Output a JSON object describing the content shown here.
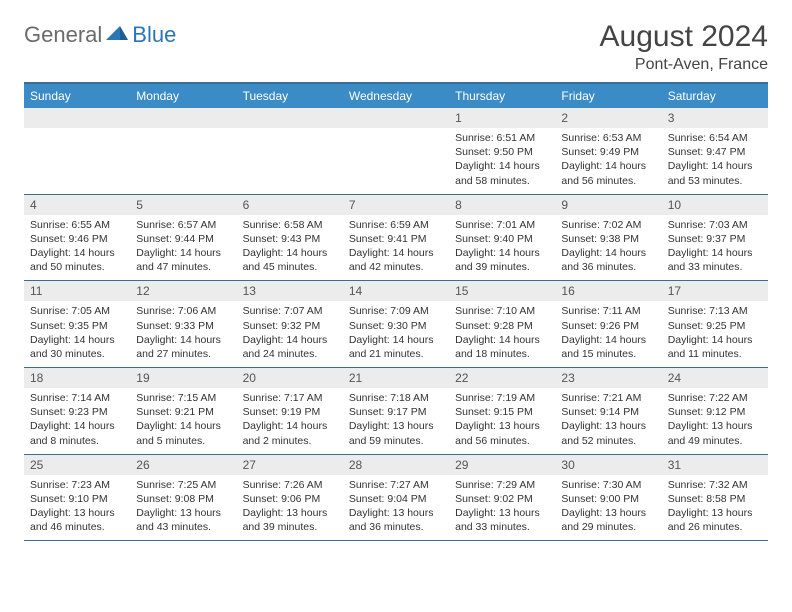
{
  "brand": {
    "general": "General",
    "blue": "Blue"
  },
  "header": {
    "month_title": "August 2024",
    "location": "Pont-Aven, France"
  },
  "colors": {
    "header_bg": "#3b8bc6",
    "rule": "#3b6c92",
    "daynum_bg": "#ececec",
    "text": "#333333",
    "brand_blue": "#2b76b9",
    "brand_gray": "#6b6b6b"
  },
  "weekday_labels": [
    "Sunday",
    "Monday",
    "Tuesday",
    "Wednesday",
    "Thursday",
    "Friday",
    "Saturday"
  ],
  "first_weekday_index": 4,
  "days": [
    {
      "n": 1,
      "sr": "6:51 AM",
      "ss": "9:50 PM",
      "dl": "14 hours and 58 minutes."
    },
    {
      "n": 2,
      "sr": "6:53 AM",
      "ss": "9:49 PM",
      "dl": "14 hours and 56 minutes."
    },
    {
      "n": 3,
      "sr": "6:54 AM",
      "ss": "9:47 PM",
      "dl": "14 hours and 53 minutes."
    },
    {
      "n": 4,
      "sr": "6:55 AM",
      "ss": "9:46 PM",
      "dl": "14 hours and 50 minutes."
    },
    {
      "n": 5,
      "sr": "6:57 AM",
      "ss": "9:44 PM",
      "dl": "14 hours and 47 minutes."
    },
    {
      "n": 6,
      "sr": "6:58 AM",
      "ss": "9:43 PM",
      "dl": "14 hours and 45 minutes."
    },
    {
      "n": 7,
      "sr": "6:59 AM",
      "ss": "9:41 PM",
      "dl": "14 hours and 42 minutes."
    },
    {
      "n": 8,
      "sr": "7:01 AM",
      "ss": "9:40 PM",
      "dl": "14 hours and 39 minutes."
    },
    {
      "n": 9,
      "sr": "7:02 AM",
      "ss": "9:38 PM",
      "dl": "14 hours and 36 minutes."
    },
    {
      "n": 10,
      "sr": "7:03 AM",
      "ss": "9:37 PM",
      "dl": "14 hours and 33 minutes."
    },
    {
      "n": 11,
      "sr": "7:05 AM",
      "ss": "9:35 PM",
      "dl": "14 hours and 30 minutes."
    },
    {
      "n": 12,
      "sr": "7:06 AM",
      "ss": "9:33 PM",
      "dl": "14 hours and 27 minutes."
    },
    {
      "n": 13,
      "sr": "7:07 AM",
      "ss": "9:32 PM",
      "dl": "14 hours and 24 minutes."
    },
    {
      "n": 14,
      "sr": "7:09 AM",
      "ss": "9:30 PM",
      "dl": "14 hours and 21 minutes."
    },
    {
      "n": 15,
      "sr": "7:10 AM",
      "ss": "9:28 PM",
      "dl": "14 hours and 18 minutes."
    },
    {
      "n": 16,
      "sr": "7:11 AM",
      "ss": "9:26 PM",
      "dl": "14 hours and 15 minutes."
    },
    {
      "n": 17,
      "sr": "7:13 AM",
      "ss": "9:25 PM",
      "dl": "14 hours and 11 minutes."
    },
    {
      "n": 18,
      "sr": "7:14 AM",
      "ss": "9:23 PM",
      "dl": "14 hours and 8 minutes."
    },
    {
      "n": 19,
      "sr": "7:15 AM",
      "ss": "9:21 PM",
      "dl": "14 hours and 5 minutes."
    },
    {
      "n": 20,
      "sr": "7:17 AM",
      "ss": "9:19 PM",
      "dl": "14 hours and 2 minutes."
    },
    {
      "n": 21,
      "sr": "7:18 AM",
      "ss": "9:17 PM",
      "dl": "13 hours and 59 minutes."
    },
    {
      "n": 22,
      "sr": "7:19 AM",
      "ss": "9:15 PM",
      "dl": "13 hours and 56 minutes."
    },
    {
      "n": 23,
      "sr": "7:21 AM",
      "ss": "9:14 PM",
      "dl": "13 hours and 52 minutes."
    },
    {
      "n": 24,
      "sr": "7:22 AM",
      "ss": "9:12 PM",
      "dl": "13 hours and 49 minutes."
    },
    {
      "n": 25,
      "sr": "7:23 AM",
      "ss": "9:10 PM",
      "dl": "13 hours and 46 minutes."
    },
    {
      "n": 26,
      "sr": "7:25 AM",
      "ss": "9:08 PM",
      "dl": "13 hours and 43 minutes."
    },
    {
      "n": 27,
      "sr": "7:26 AM",
      "ss": "9:06 PM",
      "dl": "13 hours and 39 minutes."
    },
    {
      "n": 28,
      "sr": "7:27 AM",
      "ss": "9:04 PM",
      "dl": "13 hours and 36 minutes."
    },
    {
      "n": 29,
      "sr": "7:29 AM",
      "ss": "9:02 PM",
      "dl": "13 hours and 33 minutes."
    },
    {
      "n": 30,
      "sr": "7:30 AM",
      "ss": "9:00 PM",
      "dl": "13 hours and 29 minutes."
    },
    {
      "n": 31,
      "sr": "7:32 AM",
      "ss": "8:58 PM",
      "dl": "13 hours and 26 minutes."
    }
  ],
  "labels": {
    "sunrise": "Sunrise:",
    "sunset": "Sunset:",
    "daylight": "Daylight:"
  }
}
